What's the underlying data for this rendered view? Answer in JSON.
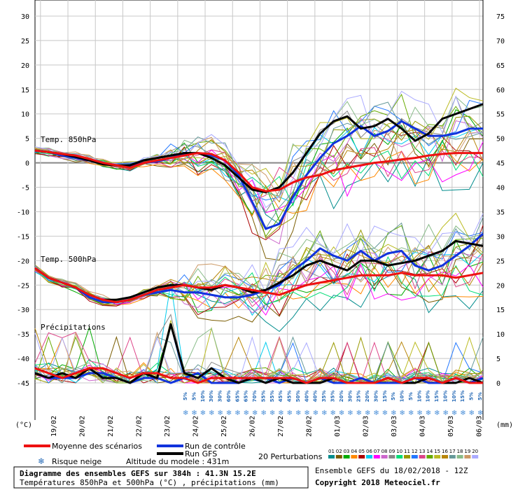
{
  "chart_data": {
    "type": "line",
    "title": "Diagramme des ensembles GEFS sur 384h : 41.3N 15.2E",
    "subtitle": "Températures 850hPa et 500hPa (°C) , précipitations (mm)",
    "left_axis": {
      "label": "(°C)",
      "ticks": [
        "30",
        "25",
        "20",
        "15",
        "10",
        "5",
        "0",
        "-5",
        "-10",
        "-15",
        "-20",
        "-25",
        "-30",
        "-35",
        "-40",
        "-45"
      ],
      "ylim": [
        -45,
        30
      ]
    },
    "right_axis": {
      "label": "(mm)",
      "ticks": [
        "75",
        "70",
        "65",
        "60",
        "55",
        "50",
        "45",
        "40",
        "35",
        "30",
        "25",
        "20",
        "15",
        "10",
        "5",
        "0"
      ],
      "ylim": [
        0,
        75
      ]
    },
    "x_ticks": [
      "19/02",
      "20/02",
      "21/02",
      "22/02",
      "23/02",
      "24/02",
      "25/02",
      "26/02",
      "27/02",
      "28/02",
      "01/03",
      "02/03",
      "03/03",
      "04/03",
      "05/03",
      "06/03"
    ],
    "panel_labels": {
      "t850": "Temp. 850hPa",
      "t500": "Temp. 500hPa",
      "precip": "Précipitations"
    },
    "snow_risk_pct": [
      "5%",
      "5%",
      "10%",
      "30%",
      "30%",
      "60%",
      "65%",
      "65%",
      "70%",
      "55%",
      "55%",
      "45%",
      "45%",
      "50%",
      "40%",
      "40%",
      "35%",
      "35%",
      "20%",
      "30%",
      "25%",
      "20%",
      "30%",
      "15%",
      "5%",
      "10%",
      "5%",
      "10%",
      "10%",
      "15%",
      "10%",
      "10%",
      "15%",
      "5%",
      "5%"
    ],
    "series": [
      {
        "name": "Moyenne des scénarios",
        "color": "#ee1111",
        "t850": [
          2.5,
          2.2,
          1.8,
          1.5,
          0.8,
          0.0,
          -0.5,
          -1.0,
          0.0,
          0.5,
          1.0,
          1.5,
          2.0,
          1.8,
          0.5,
          -2.0,
          -5.0,
          -5.8,
          -5.5,
          -4.0,
          -3.0,
          -2.5,
          -1.5,
          -1.0,
          -0.5,
          0.0,
          0.3,
          0.7,
          1.0,
          1.5,
          1.8,
          2.0,
          2.0,
          2.0
        ],
        "t500": [
          -21.5,
          -23.5,
          -24.5,
          -25.5,
          -27.0,
          -28.0,
          -28.5,
          -28.0,
          -27.0,
          -26.0,
          -25.5,
          -25.0,
          -25.5,
          -25.5,
          -25.0,
          -25.5,
          -26.0,
          -26.5,
          -27.0,
          -26.0,
          -25.0,
          -24.5,
          -24.0,
          -23.5,
          -23.0,
          -23.0,
          -23.0,
          -22.5,
          -23.0,
          -23.0,
          -23.0,
          -23.5,
          -23.0,
          -22.5
        ],
        "precip": [
          3,
          2,
          1,
          2,
          3,
          3,
          2,
          1,
          2,
          2,
          1,
          1,
          0,
          1,
          1,
          1,
          1,
          1,
          1,
          1,
          0,
          1,
          1,
          0,
          0,
          0,
          1,
          0,
          1,
          1,
          0,
          1,
          0,
          0
        ]
      },
      {
        "name": "Run de contrôle",
        "color": "#1133dd",
        "t850": [
          2.5,
          2.2,
          1.5,
          1.0,
          0.5,
          0.0,
          -0.5,
          -0.8,
          0.0,
          0.3,
          1.0,
          1.8,
          2.0,
          1.5,
          0.5,
          -2.5,
          -8.0,
          -13.5,
          -12.5,
          -7.0,
          -2.5,
          1.0,
          4.0,
          5.5,
          7.5,
          5.5,
          6.5,
          8.5,
          7.0,
          5.5,
          5.5,
          6.0,
          7.0,
          7.0
        ],
        "t500": [
          -21.5,
          -23.5,
          -24.5,
          -25.5,
          -27.5,
          -28.5,
          -28.5,
          -28.0,
          -27.0,
          -26.5,
          -26.0,
          -26.5,
          -26.5,
          -27.0,
          -27.5,
          -27.5,
          -27.0,
          -26.0,
          -25.0,
          -22.0,
          -20.0,
          -17.5,
          -19.0,
          -20.0,
          -18.0,
          -20.0,
          -18.5,
          -18.0,
          -21.0,
          -22.0,
          -21.0,
          -19.0,
          -17.0,
          -14.5
        ],
        "precip": [
          2,
          1,
          1,
          1,
          2,
          2,
          1,
          0,
          1,
          1,
          0,
          1,
          2,
          0,
          0,
          0,
          1,
          1,
          0,
          1,
          0,
          1,
          0,
          0,
          1,
          0,
          0,
          0,
          1,
          0,
          0,
          1,
          0,
          1
        ]
      },
      {
        "name": "Run GFS",
        "color": "#000000",
        "t850": [
          2.5,
          2.2,
          1.8,
          1.2,
          0.5,
          -0.3,
          -0.5,
          -0.5,
          0.5,
          1.0,
          1.5,
          2.0,
          2.0,
          1.0,
          -0.5,
          -3.0,
          -5.5,
          -6.0,
          -5.0,
          -2.0,
          2.0,
          6.0,
          8.5,
          9.5,
          7.0,
          7.5,
          9.0,
          7.0,
          4.5,
          6.0,
          9.0,
          10.0,
          11.0,
          12.0
        ],
        "t500": [
          -21.5,
          -23.5,
          -24.5,
          -25.5,
          -27.0,
          -28.0,
          -28.0,
          -27.5,
          -26.5,
          -25.5,
          -25.0,
          -25.0,
          -25.5,
          -26.0,
          -25.0,
          -25.5,
          -26.5,
          -26.0,
          -24.5,
          -23.0,
          -21.0,
          -20.0,
          -21.0,
          -22.0,
          -20.0,
          -20.0,
          -21.0,
          -20.5,
          -20.0,
          -19.0,
          -18.0,
          -16.0,
          -16.5,
          -17.0
        ],
        "precip": [
          2,
          1,
          2,
          1,
          3,
          1,
          1,
          0,
          2,
          1,
          12,
          2,
          1,
          3,
          1,
          0,
          1,
          0,
          1,
          0,
          0,
          0,
          1,
          0,
          0,
          0,
          1,
          0,
          0,
          1,
          0,
          0,
          1,
          0
        ]
      }
    ],
    "legend": {
      "mean": "Moyenne des scénarios",
      "control": "Run de contrôle",
      "gfs": "Run GFS",
      "perturbations": "20 Perturbations",
      "snow": "Risque neige",
      "altitude": "Altitude du modele : 431m",
      "pert_numbers": [
        "01",
        "02",
        "03",
        "04",
        "05",
        "06",
        "07",
        "08",
        "09",
        "10",
        "11",
        "12",
        "13",
        "14",
        "15",
        "16",
        "17",
        "18",
        "19",
        "20"
      ],
      "pert_colors": [
        "#008c8c",
        "#7a5c00",
        "#00aa00",
        "#ff8800",
        "#aa0000",
        "#00ccee",
        "#ff00ff",
        "#cc66cc",
        "#888888",
        "#00dd77",
        "#999900",
        "#2277ff",
        "#dd4488",
        "#66aa00",
        "#bbbb22",
        "#b8860b",
        "#669999",
        "#88bb88",
        "#cc9966",
        "#aaaaff"
      ]
    }
  },
  "footer": {
    "title_line1": "Diagramme des ensembles GEFS sur 384h : 41.3N 15.2E",
    "title_line2": "Températures 850hPa et 500hPa (°C) , précipitations (mm)",
    "run": "Ensemble GEFS du 18/02/2018 - 12Z",
    "copyright": "Copyright 2018 Meteociel.fr"
  }
}
